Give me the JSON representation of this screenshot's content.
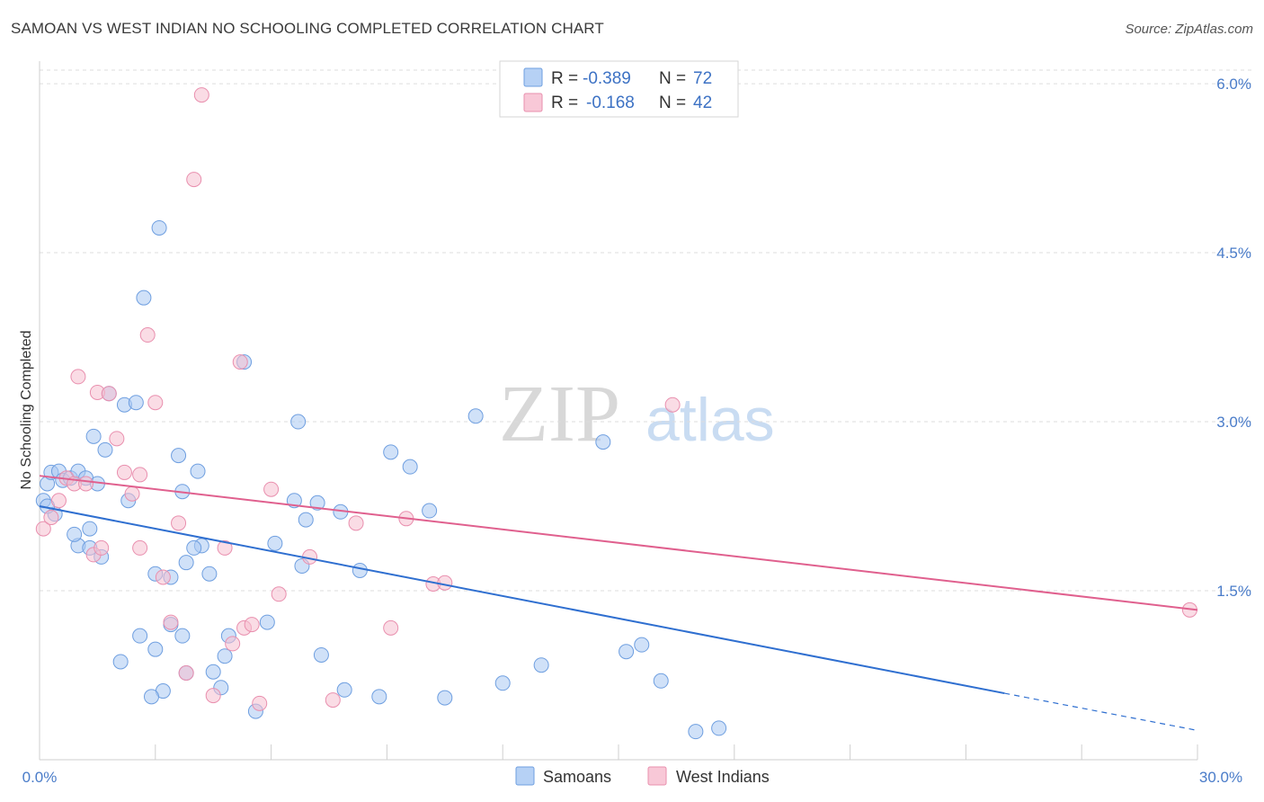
{
  "header": {
    "title": "SAMOAN VS WEST INDIAN NO SCHOOLING COMPLETED CORRELATION CHART",
    "source": "Source: ZipAtlas.com"
  },
  "watermark": {
    "part1": "ZIP",
    "part2": "atlas"
  },
  "colors": {
    "samoans_fill": "#a9c8f2",
    "samoans_stroke": "#6f9fe0",
    "samoans_line": "#2f6fd0",
    "westindians_fill": "#f6bfd0",
    "westindians_stroke": "#e98fae",
    "westindians_line": "#e0608e",
    "tick_color": "#4a7cc9",
    "grid": "#dddddd"
  },
  "legend": {
    "rows": [
      {
        "r_label": "R = ",
        "r_value": "-0.389",
        "n_label": "N = ",
        "n_value": "72"
      },
      {
        "r_label": "R = ",
        "r_value": "-0.168",
        "n_label": "N = ",
        "n_value": "42"
      }
    ]
  },
  "chart_data": {
    "type": "scatter",
    "title": "SAMOAN VS WEST INDIAN NO SCHOOLING COMPLETED CORRELATION CHART",
    "xlabel": "",
    "ylabel": "No Schooling Completed",
    "xlim": [
      0,
      30
    ],
    "ylim": [
      0,
      6.2
    ],
    "x_tick_labels": [
      "0.0%",
      "30.0%"
    ],
    "y_ticks": [
      1.5,
      3.0,
      4.5,
      6.0
    ],
    "y_tick_labels": [
      "1.5%",
      "3.0%",
      "4.5%",
      "6.0%"
    ],
    "legend_position": "bottom-center",
    "series": [
      {
        "name": "Samoans",
        "r": -0.389,
        "n": 72,
        "trend": {
          "x0": 0,
          "y0": 2.25,
          "x1": 25,
          "y1": 0.59,
          "dash_x1": 30,
          "dash_y1": 0.26
        },
        "points": [
          [
            0.1,
            2.3
          ],
          [
            0.2,
            2.45
          ],
          [
            0.3,
            2.55
          ],
          [
            0.4,
            2.18
          ],
          [
            0.5,
            2.56
          ],
          [
            0.6,
            2.48
          ],
          [
            0.8,
            2.5
          ],
          [
            1.0,
            2.56
          ],
          [
            1.2,
            2.5
          ],
          [
            1.0,
            1.9
          ],
          [
            1.3,
            1.88
          ],
          [
            1.6,
            1.8
          ],
          [
            1.4,
            2.87
          ],
          [
            1.7,
            2.75
          ],
          [
            2.2,
            3.15
          ],
          [
            1.8,
            3.25
          ],
          [
            2.5,
            3.17
          ],
          [
            2.3,
            2.3
          ],
          [
            0.9,
            2.0
          ],
          [
            1.3,
            2.05
          ],
          [
            2.7,
            4.1
          ],
          [
            3.1,
            4.72
          ],
          [
            3.6,
            2.7
          ],
          [
            3.7,
            2.38
          ],
          [
            4.1,
            2.56
          ],
          [
            4.2,
            1.9
          ],
          [
            3.8,
            1.75
          ],
          [
            4.0,
            1.88
          ],
          [
            3.4,
            1.62
          ],
          [
            3.0,
            1.65
          ],
          [
            3.7,
            1.1
          ],
          [
            3.4,
            1.2
          ],
          [
            4.9,
            1.1
          ],
          [
            4.8,
            0.92
          ],
          [
            4.4,
            1.65
          ],
          [
            5.3,
            3.53
          ],
          [
            6.1,
            1.92
          ],
          [
            6.6,
            2.3
          ],
          [
            6.9,
            2.13
          ],
          [
            6.7,
            3.0
          ],
          [
            6.8,
            1.72
          ],
          [
            7.8,
            2.2
          ],
          [
            7.3,
            0.93
          ],
          [
            7.2,
            2.28
          ],
          [
            7.9,
            0.62
          ],
          [
            8.3,
            1.68
          ],
          [
            8.8,
            0.56
          ],
          [
            9.1,
            2.73
          ],
          [
            9.6,
            2.6
          ],
          [
            10.1,
            2.21
          ],
          [
            10.5,
            0.55
          ],
          [
            11.3,
            3.05
          ],
          [
            12.0,
            0.68
          ],
          [
            13.0,
            0.84
          ],
          [
            14.6,
            2.82
          ],
          [
            15.2,
            0.96
          ],
          [
            15.6,
            1.02
          ],
          [
            16.1,
            0.7
          ],
          [
            17.0,
            0.25
          ],
          [
            17.6,
            0.28
          ],
          [
            2.1,
            0.87
          ],
          [
            2.6,
            1.1
          ],
          [
            3.0,
            0.98
          ],
          [
            3.8,
            0.77
          ],
          [
            4.7,
            0.64
          ],
          [
            5.6,
            0.43
          ],
          [
            4.5,
            0.78
          ],
          [
            3.2,
            0.61
          ],
          [
            2.9,
            0.56
          ],
          [
            5.9,
            1.22
          ],
          [
            0.2,
            2.25
          ],
          [
            1.5,
            2.45
          ]
        ]
      },
      {
        "name": "West Indians",
        "r": -0.168,
        "n": 42,
        "trend": {
          "x0": 0,
          "y0": 2.52,
          "x1": 30,
          "y1": 1.33
        },
        "points": [
          [
            0.1,
            2.05
          ],
          [
            0.3,
            2.15
          ],
          [
            0.5,
            2.3
          ],
          [
            0.7,
            2.5
          ],
          [
            0.9,
            2.45
          ],
          [
            1.0,
            3.4
          ],
          [
            1.2,
            2.45
          ],
          [
            1.5,
            3.26
          ],
          [
            1.8,
            3.25
          ],
          [
            2.0,
            2.85
          ],
          [
            1.4,
            1.82
          ],
          [
            1.6,
            1.88
          ],
          [
            2.2,
            2.55
          ],
          [
            2.4,
            2.36
          ],
          [
            2.6,
            2.53
          ],
          [
            2.8,
            3.77
          ],
          [
            3.0,
            3.17
          ],
          [
            2.6,
            1.88
          ],
          [
            3.2,
            1.62
          ],
          [
            3.4,
            1.22
          ],
          [
            3.6,
            2.1
          ],
          [
            3.8,
            0.77
          ],
          [
            4.0,
            5.15
          ],
          [
            4.2,
            5.9
          ],
          [
            4.5,
            0.57
          ],
          [
            4.8,
            1.88
          ],
          [
            5.0,
            1.03
          ],
          [
            5.2,
            3.53
          ],
          [
            5.3,
            1.17
          ],
          [
            5.5,
            1.2
          ],
          [
            5.7,
            0.5
          ],
          [
            6.0,
            2.4
          ],
          [
            6.2,
            1.47
          ],
          [
            7.0,
            1.8
          ],
          [
            7.6,
            0.53
          ],
          [
            8.2,
            2.1
          ],
          [
            9.1,
            1.17
          ],
          [
            9.5,
            2.14
          ],
          [
            10.2,
            1.56
          ],
          [
            10.5,
            1.57
          ],
          [
            16.4,
            3.15
          ],
          [
            29.8,
            1.33
          ]
        ]
      }
    ]
  },
  "bottom_legend": {
    "items": [
      {
        "label": "Samoans"
      },
      {
        "label": "West Indians"
      }
    ]
  }
}
